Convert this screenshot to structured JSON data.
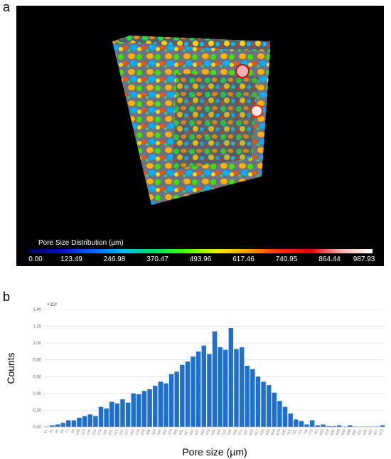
{
  "panels": {
    "a": "a",
    "b": "b"
  },
  "colorbar": {
    "title": "Pore Size Distribution (µm)",
    "ticks": [
      "0.00",
      "123.49",
      "246.98",
      "370.47",
      "493.96",
      "617.46",
      "740.95",
      "864.44",
      "987.93"
    ],
    "colors": [
      "#000060",
      "#0010c0",
      "#0060ff",
      "#00b8ff",
      "#00e060",
      "#40ff00",
      "#e8f000",
      "#ffa000",
      "#ff3000",
      "#e00000",
      "#ffb0b0",
      "#ffffff"
    ]
  },
  "chart_data": {
    "type": "bar",
    "xlabel": "Pore size (µm)",
    "ylabel": "Counts",
    "y_multiplier": "×10⁶",
    "ylim": [
      0,
      1.4
    ],
    "y_ticks": [
      "0.00",
      "0.20",
      "0.40",
      "0.60",
      "0.80",
      "1.00",
      "1.20",
      "1.40"
    ],
    "grid": true,
    "bar_color": "#1f6fd1",
    "categories": [
      "15",
      "31",
      "46",
      "62",
      "77",
      "93",
      "108",
      "123",
      "139",
      "154",
      "170",
      "185",
      "201",
      "216",
      "231",
      "247",
      "262",
      "278",
      "293",
      "309",
      "324",
      "340",
      "355",
      "370",
      "386",
      "401",
      "417",
      "432",
      "447",
      "463",
      "478",
      "494",
      "509",
      "525",
      "540",
      "556",
      "571",
      "587",
      "602",
      "617",
      "633",
      "648",
      "664",
      "679",
      "695",
      "710",
      "726",
      "741",
      "756",
      "772",
      "787",
      "803",
      "818",
      "834",
      "849",
      "864",
      "880",
      "895",
      "911",
      "926",
      "942",
      "957",
      "972"
    ],
    "values": [
      0.005,
      0.02,
      0.03,
      0.05,
      0.08,
      0.08,
      0.11,
      0.13,
      0.15,
      0.13,
      0.24,
      0.22,
      0.3,
      0.28,
      0.33,
      0.29,
      0.4,
      0.39,
      0.43,
      0.45,
      0.49,
      0.54,
      0.52,
      0.63,
      0.66,
      0.74,
      0.78,
      0.84,
      0.9,
      0.97,
      0.87,
      1.14,
      0.95,
      0.92,
      1.18,
      0.93,
      0.95,
      0.73,
      0.69,
      0.6,
      0.54,
      0.5,
      0.41,
      0.31,
      0.24,
      0.16,
      0.09,
      0.07,
      0.03,
      0.08,
      0.02,
      0.03,
      0.01,
      0.01,
      0.02,
      0.005,
      0.02,
      0.005,
      0.005,
      0.005,
      0.005,
      0.005,
      0.02
    ],
    "x_tick_labels": [
      "15",
      "31",
      "46",
      "62",
      "77",
      "93",
      "108",
      "123",
      "139",
      "154",
      "170",
      "185",
      "201",
      "216",
      "231",
      "247",
      "262",
      "278",
      "293",
      "309",
      "324",
      "340",
      "355",
      "370",
      "386",
      "401",
      "417",
      "432",
      "447",
      "463",
      "478",
      "494",
      "509",
      "525",
      "540",
      "556",
      "571",
      "587",
      "602",
      "617",
      "633",
      "648",
      "664",
      "679",
      "695",
      "710",
      "726",
      "741",
      "756",
      "772",
      "787",
      "803",
      "818",
      "834",
      "849",
      "864",
      "880",
      "895",
      "911",
      "926",
      "942",
      "957",
      "972"
    ]
  }
}
